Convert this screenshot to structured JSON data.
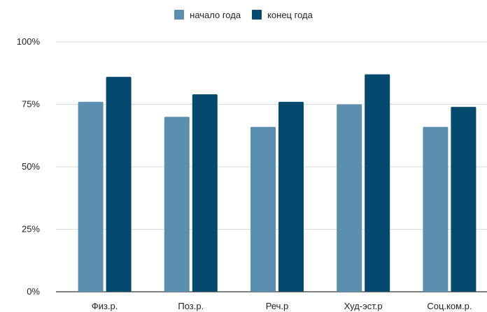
{
  "chart_data": {
    "type": "bar",
    "categories": [
      "Физ.р.",
      "Поз.р.",
      "Реч.р",
      "Худ-эст.р",
      "Соц.ком.р."
    ],
    "series": [
      {
        "name": "начало года",
        "values": [
          76,
          70,
          66,
          75,
          66
        ],
        "color": "#5b8fb0"
      },
      {
        "name": "конец года",
        "values": [
          86,
          79,
          76,
          87,
          74
        ],
        "color": "#044a6e"
      }
    ],
    "y_ticks": [
      "0%",
      "25%",
      "50%",
      "75%",
      "100%"
    ],
    "ylim": [
      0,
      100
    ],
    "grid": true,
    "legend_position": "top-center",
    "title": "",
    "xlabel": "",
    "ylabel": ""
  }
}
